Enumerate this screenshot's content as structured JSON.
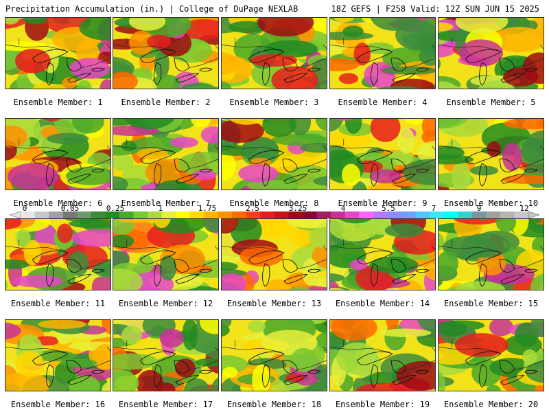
{
  "header": {
    "left": "Precipitation Accumulation (in.) | College of DuPage NEXLAB",
    "right": "18Z GEFS | F258 Valid: 12Z SUN JUN 15 2025"
  },
  "panels": [
    {
      "label": "Ensemble Member: 1"
    },
    {
      "label": "Ensemble Member: 2"
    },
    {
      "label": "Ensemble Member: 3"
    },
    {
      "label": "Ensemble Member: 4"
    },
    {
      "label": "Ensemble Member: 5"
    },
    {
      "label": "Ensemble Member: 6"
    },
    {
      "label": "Ensemble Member: 7"
    },
    {
      "label": "Ensemble Member: 8"
    },
    {
      "label": "Ensemble Member: 9"
    },
    {
      "label": "Ensemble Member: 10"
    },
    {
      "label": "Ensemble Member: 11"
    },
    {
      "label": "Ensemble Member: 12"
    },
    {
      "label": "Ensemble Member: 13"
    },
    {
      "label": "Ensemble Member: 14"
    },
    {
      "label": "Ensemble Member: 15"
    },
    {
      "label": "Ensemble Member: 16"
    },
    {
      "label": "Ensemble Member: 17"
    },
    {
      "label": "Ensemble Member: 18"
    },
    {
      "label": "Ensemble Member: 19"
    },
    {
      "label": "Ensemble Member: 20"
    }
  ],
  "colorbar": {
    "tick_labels": [
      "0",
      "0.05",
      "0.25",
      "1",
      "1.75",
      "2.5",
      "3.25",
      "4",
      "5.5",
      "7",
      "9",
      "12"
    ],
    "colors": [
      "#e6e6e6",
      "#c8c8c8",
      "#a0a0a0",
      "#787878",
      "#6e9a6e",
      "#3c8c3c",
      "#228b22",
      "#4aa82a",
      "#7ac832",
      "#a8dc3c",
      "#e6f03c",
      "#ffff00",
      "#ffd800",
      "#ffb400",
      "#ff9000",
      "#ff6800",
      "#ff3c1e",
      "#e61e1e",
      "#c81414",
      "#a00a14",
      "#820a28",
      "#a01e64",
      "#c83296",
      "#e646c8",
      "#ff64ff",
      "#b478ff",
      "#8c8cff",
      "#6ea0ff",
      "#50c8ff",
      "#3ce6ff",
      "#00ffff",
      "#32d2d2",
      "#7896a0",
      "#a0a0a0",
      "#b4b4b4",
      "#c8c8c8"
    ]
  }
}
